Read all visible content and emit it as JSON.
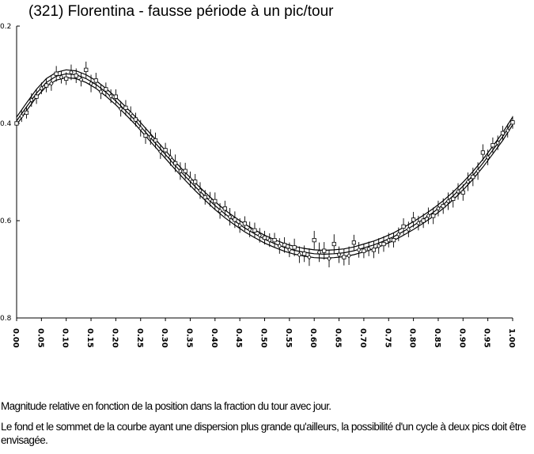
{
  "chart_data": {
    "type": "scatter",
    "title": "(321) Florentina - fausse période à un pic/tour",
    "xlabel": "",
    "ylabel": "",
    "xlim": [
      0.0,
      1.0
    ],
    "ylim": [
      0.2,
      0.8
    ],
    "y_inverted": true,
    "x_tick_labels": [
      "0.00",
      "0.05",
      "0.10",
      "0.15",
      "0.20",
      "0.25",
      "0.30",
      "0.35",
      "0.40",
      "0.45",
      "0.50",
      "0.55",
      "0.60",
      "0.65",
      "0.70",
      "0.75",
      "0.80",
      "0.85",
      "0.90",
      "0.95",
      "1.00"
    ],
    "y_tick_labels": [
      "0.2",
      "0.4",
      "0.6",
      "0.8"
    ],
    "grid": false,
    "fit_curve": {
      "x": [
        0.0,
        0.02,
        0.04,
        0.06,
        0.08,
        0.1,
        0.12,
        0.14,
        0.16,
        0.18,
        0.2,
        0.22,
        0.24,
        0.26,
        0.28,
        0.3,
        0.32,
        0.34,
        0.36,
        0.38,
        0.4,
        0.42,
        0.44,
        0.46,
        0.48,
        0.5,
        0.52,
        0.54,
        0.56,
        0.58,
        0.6,
        0.62,
        0.64,
        0.66,
        0.68,
        0.7,
        0.72,
        0.74,
        0.76,
        0.78,
        0.8,
        0.82,
        0.84,
        0.86,
        0.88,
        0.9,
        0.92,
        0.94,
        0.96,
        0.98,
        1.0
      ],
      "y": [
        0.395,
        0.366,
        0.338,
        0.316,
        0.303,
        0.298,
        0.3,
        0.308,
        0.32,
        0.336,
        0.354,
        0.374,
        0.395,
        0.418,
        0.441,
        0.464,
        0.487,
        0.509,
        0.53,
        0.55,
        0.569,
        0.586,
        0.601,
        0.615,
        0.627,
        0.638,
        0.647,
        0.655,
        0.661,
        0.665,
        0.668,
        0.669,
        0.668,
        0.666,
        0.662,
        0.656,
        0.65,
        0.642,
        0.633,
        0.622,
        0.61,
        0.597,
        0.583,
        0.567,
        0.549,
        0.529,
        0.507,
        0.482,
        0.455,
        0.427,
        0.395
      ],
      "band_offsets": [
        -0.008,
        0.0,
        0.008
      ]
    },
    "series": [
      {
        "marker": "diamond",
        "x": [
          0.01,
          0.03,
          0.05,
          0.07,
          0.09,
          0.11,
          0.13,
          0.15,
          0.17,
          0.19,
          0.21,
          0.23,
          0.25,
          0.27,
          0.29,
          0.31,
          0.33,
          0.35,
          0.37,
          0.39,
          0.41,
          0.43,
          0.45,
          0.47,
          0.49,
          0.51,
          0.53,
          0.55,
          0.57,
          0.59,
          0.61,
          0.63,
          0.65,
          0.67,
          0.69,
          0.71,
          0.73,
          0.75,
          0.77,
          0.79,
          0.81,
          0.83,
          0.85,
          0.87,
          0.89,
          0.91,
          0.93,
          0.95,
          0.97,
          0.99
        ],
        "y": [
          0.385,
          0.352,
          0.328,
          0.318,
          0.305,
          0.295,
          0.31,
          0.318,
          0.335,
          0.344,
          0.37,
          0.38,
          0.41,
          0.428,
          0.458,
          0.47,
          0.498,
          0.515,
          0.538,
          0.556,
          0.58,
          0.592,
          0.61,
          0.618,
          0.63,
          0.64,
          0.652,
          0.66,
          0.67,
          0.675,
          0.665,
          0.678,
          0.67,
          0.672,
          0.66,
          0.658,
          0.652,
          0.64,
          0.628,
          0.618,
          0.605,
          0.59,
          0.575,
          0.56,
          0.54,
          0.52,
          0.498,
          0.47,
          0.44,
          0.415
        ],
        "err": [
          0.012,
          0.014,
          0.012,
          0.015,
          0.013,
          0.016,
          0.014,
          0.018,
          0.015,
          0.014,
          0.016,
          0.015,
          0.017,
          0.016,
          0.015,
          0.017,
          0.018,
          0.016,
          0.017,
          0.015,
          0.016,
          0.018,
          0.015,
          0.016,
          0.015,
          0.014,
          0.016,
          0.015,
          0.017,
          0.018,
          0.02,
          0.018,
          0.017,
          0.019,
          0.016,
          0.015,
          0.016,
          0.015,
          0.014,
          0.016,
          0.015,
          0.017,
          0.016,
          0.018,
          0.017,
          0.019,
          0.018,
          0.016,
          0.015,
          0.014
        ]
      },
      {
        "marker": "square",
        "x": [
          0.0,
          0.02,
          0.04,
          0.06,
          0.08,
          0.1,
          0.12,
          0.14,
          0.16,
          0.18,
          0.2,
          0.22,
          0.24,
          0.26,
          0.28,
          0.3,
          0.32,
          0.34,
          0.36,
          0.38,
          0.4,
          0.42,
          0.44,
          0.46,
          0.48,
          0.5,
          0.52,
          0.54,
          0.56,
          0.58,
          0.6,
          0.62,
          0.64,
          0.66,
          0.68,
          0.7,
          0.72,
          0.74,
          0.76,
          0.78,
          0.8,
          0.82,
          0.84,
          0.86,
          0.88,
          0.9,
          0.92,
          0.94,
          0.96,
          0.98,
          1.0
        ],
        "y": [
          0.4,
          0.378,
          0.345,
          0.322,
          0.298,
          0.308,
          0.302,
          0.29,
          0.312,
          0.33,
          0.345,
          0.368,
          0.392,
          0.425,
          0.435,
          0.455,
          0.482,
          0.498,
          0.52,
          0.552,
          0.56,
          0.575,
          0.598,
          0.606,
          0.62,
          0.635,
          0.64,
          0.65,
          0.655,
          0.668,
          0.64,
          0.662,
          0.648,
          0.675,
          0.645,
          0.662,
          0.66,
          0.648,
          0.64,
          0.612,
          0.598,
          0.6,
          0.59,
          0.57,
          0.555,
          0.542,
          0.51,
          0.46,
          0.445,
          0.42,
          0.398
        ],
        "err": [
          0.013,
          0.012,
          0.015,
          0.014,
          0.016,
          0.013,
          0.015,
          0.017,
          0.016,
          0.014,
          0.015,
          0.016,
          0.014,
          0.017,
          0.016,
          0.015,
          0.018,
          0.017,
          0.016,
          0.015,
          0.018,
          0.016,
          0.017,
          0.015,
          0.016,
          0.014,
          0.015,
          0.016,
          0.018,
          0.017,
          0.019,
          0.018,
          0.02,
          0.017,
          0.016,
          0.015,
          0.017,
          0.016,
          0.015,
          0.017,
          0.016,
          0.015,
          0.017,
          0.016,
          0.018,
          0.017,
          0.019,
          0.017,
          0.016,
          0.015,
          0.013
        ]
      }
    ]
  },
  "caption": {
    "line1": "Magnitude relative en fonction de la position dans la fraction du tour avec jour.",
    "line2": "Le fond et le sommet de la courbe ayant une dispersion plus grande qu'ailleurs, la possibilité d'un cycle à deux pics doit être envisagée."
  }
}
